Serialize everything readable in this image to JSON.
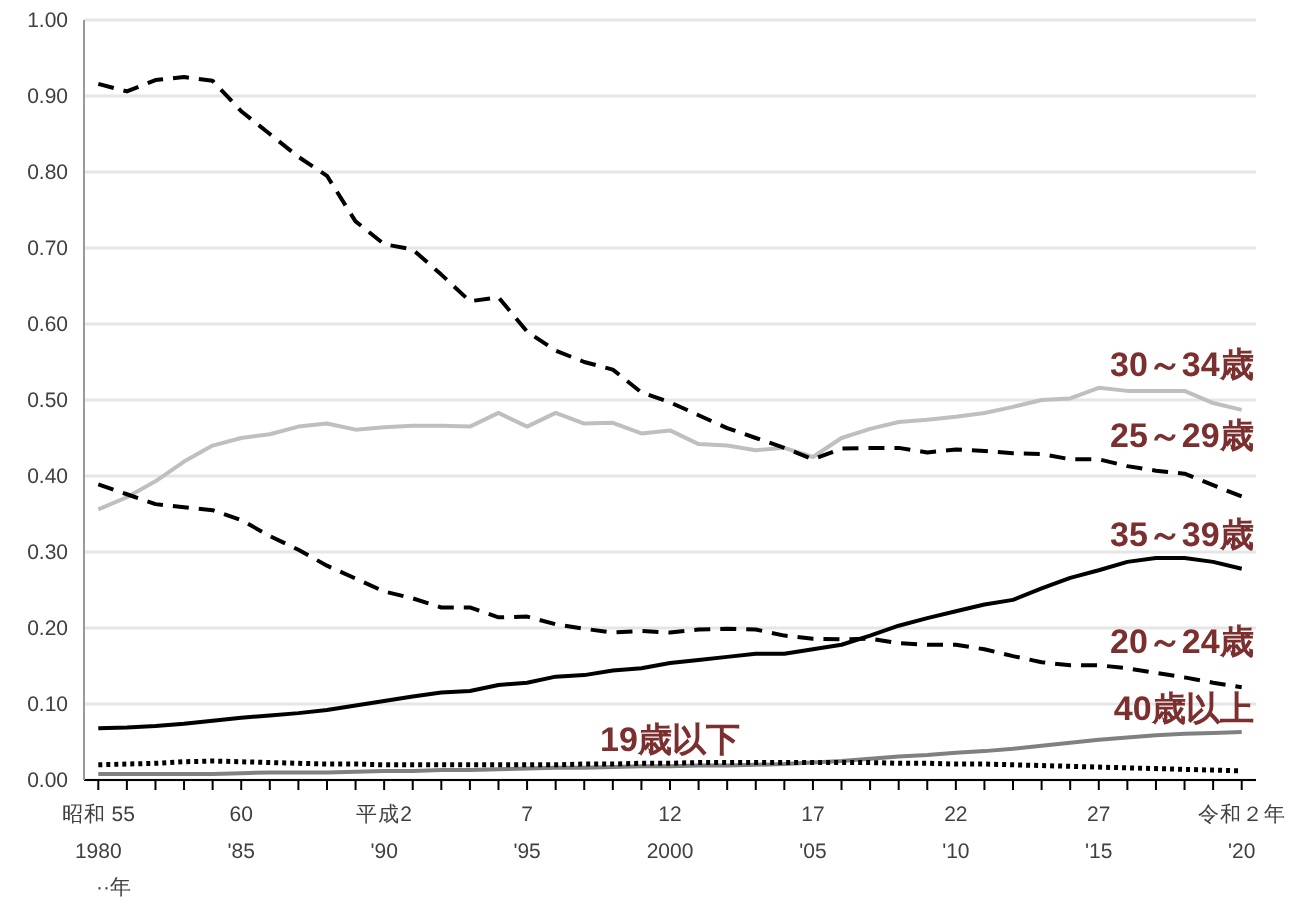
{
  "chart_data": {
    "type": "line",
    "categories": [
      "昭和 55\n1980",
      null,
      null,
      null,
      null,
      "60\n'85",
      null,
      null,
      null,
      null,
      "平成2\n'90",
      null,
      null,
      null,
      null,
      "7\n'95",
      null,
      null,
      null,
      null,
      "12\n2000",
      null,
      null,
      null,
      null,
      "17\n'05",
      null,
      null,
      null,
      null,
      "22\n'10",
      null,
      null,
      null,
      null,
      "27\n'15",
      null,
      null,
      null,
      null,
      "令和２年\n'20"
    ],
    "series": [
      {
        "name": "30～34歳",
        "color": "#bfbfbf",
        "line_style": "solid",
        "values": [
          0.356,
          0.372,
          0.393,
          0.419,
          0.44,
          0.45,
          0.455,
          0.465,
          0.469,
          0.461,
          0.464,
          0.466,
          0.466,
          0.465,
          0.483,
          0.465,
          0.483,
          0.469,
          0.47,
          0.456,
          0.46,
          0.442,
          0.44,
          0.434,
          0.437,
          0.425,
          0.45,
          0.462,
          0.471,
          0.474,
          0.478,
          0.483,
          0.491,
          0.5,
          0.502,
          0.516,
          0.512,
          0.512,
          0.512,
          0.496,
          0.487
        ]
      },
      {
        "name": "25～29歳",
        "color": "#000000",
        "line_style": "dashed",
        "values": [
          0.916,
          0.906,
          0.921,
          0.925,
          0.92,
          0.88,
          0.85,
          0.82,
          0.795,
          0.735,
          0.705,
          0.698,
          0.665,
          0.63,
          0.635,
          0.59,
          0.565,
          0.55,
          0.54,
          0.51,
          0.497,
          0.48,
          0.463,
          0.45,
          0.437,
          0.422,
          0.436,
          0.437,
          0.437,
          0.431,
          0.435,
          0.433,
          0.43,
          0.429,
          0.422,
          0.422,
          0.413,
          0.407,
          0.403,
          0.388,
          0.373
        ]
      },
      {
        "name": "35～39歳",
        "color": "#000000",
        "line_style": "solid",
        "values": [
          0.068,
          0.069,
          0.071,
          0.074,
          0.078,
          0.082,
          0.085,
          0.088,
          0.092,
          0.098,
          0.104,
          0.11,
          0.115,
          0.117,
          0.125,
          0.128,
          0.136,
          0.138,
          0.144,
          0.147,
          0.154,
          0.158,
          0.162,
          0.166,
          0.166,
          0.172,
          0.178,
          0.19,
          0.203,
          0.213,
          0.222,
          0.231,
          0.237,
          0.252,
          0.266,
          0.276,
          0.287,
          0.292,
          0.292,
          0.287,
          0.278
        ]
      },
      {
        "name": "20～24歳",
        "color": "#000000",
        "line_style": "dashed",
        "values": [
          0.389,
          0.376,
          0.363,
          0.359,
          0.355,
          0.342,
          0.321,
          0.303,
          0.282,
          0.265,
          0.248,
          0.239,
          0.227,
          0.227,
          0.214,
          0.215,
          0.205,
          0.199,
          0.194,
          0.196,
          0.194,
          0.198,
          0.199,
          0.198,
          0.19,
          0.186,
          0.185,
          0.186,
          0.18,
          0.178,
          0.178,
          0.172,
          0.163,
          0.155,
          0.151,
          0.151,
          0.147,
          0.141,
          0.135,
          0.128,
          0.122
        ]
      },
      {
        "name": "40歳以上",
        "color": "#808080",
        "line_style": "solid",
        "values": [
          0.008,
          0.008,
          0.008,
          0.008,
          0.008,
          0.009,
          0.01,
          0.01,
          0.01,
          0.011,
          0.012,
          0.012,
          0.013,
          0.013,
          0.014,
          0.015,
          0.016,
          0.016,
          0.017,
          0.018,
          0.018,
          0.019,
          0.019,
          0.02,
          0.021,
          0.023,
          0.025,
          0.028,
          0.031,
          0.033,
          0.036,
          0.038,
          0.041,
          0.045,
          0.049,
          0.053,
          0.056,
          0.059,
          0.061,
          0.062,
          0.063
        ]
      },
      {
        "name": "19歳以下",
        "color": "#000000",
        "line_style": "dotted",
        "values": [
          0.02,
          0.021,
          0.022,
          0.024,
          0.025,
          0.024,
          0.023,
          0.022,
          0.021,
          0.021,
          0.02,
          0.02,
          0.02,
          0.02,
          0.02,
          0.02,
          0.02,
          0.021,
          0.021,
          0.022,
          0.022,
          0.023,
          0.023,
          0.023,
          0.023,
          0.023,
          0.023,
          0.023,
          0.022,
          0.022,
          0.021,
          0.021,
          0.02,
          0.019,
          0.018,
          0.017,
          0.016,
          0.015,
          0.014,
          0.013,
          0.012
        ]
      }
    ],
    "ylim": [
      0,
      1
    ],
    "yticks": [
      {
        "value": 0,
        "label": "0.00"
      },
      {
        "value": 0.1,
        "label": "0.10"
      },
      {
        "value": 0.2,
        "label": "0.20"
      },
      {
        "value": 0.3,
        "label": "0.30"
      },
      {
        "value": 0.4,
        "label": "0.40"
      },
      {
        "value": 0.5,
        "label": "0.50"
      },
      {
        "value": 0.6,
        "label": "0.60"
      },
      {
        "value": 0.7,
        "label": "0.70"
      },
      {
        "value": 0.8,
        "label": "0.80"
      },
      {
        "value": 0.9,
        "label": "0.90"
      },
      {
        "value": 1,
        "label": "1.00"
      }
    ],
    "grid": "y",
    "legend": false,
    "marker": "none",
    "annotations": [
      "··年"
    ]
  }
}
